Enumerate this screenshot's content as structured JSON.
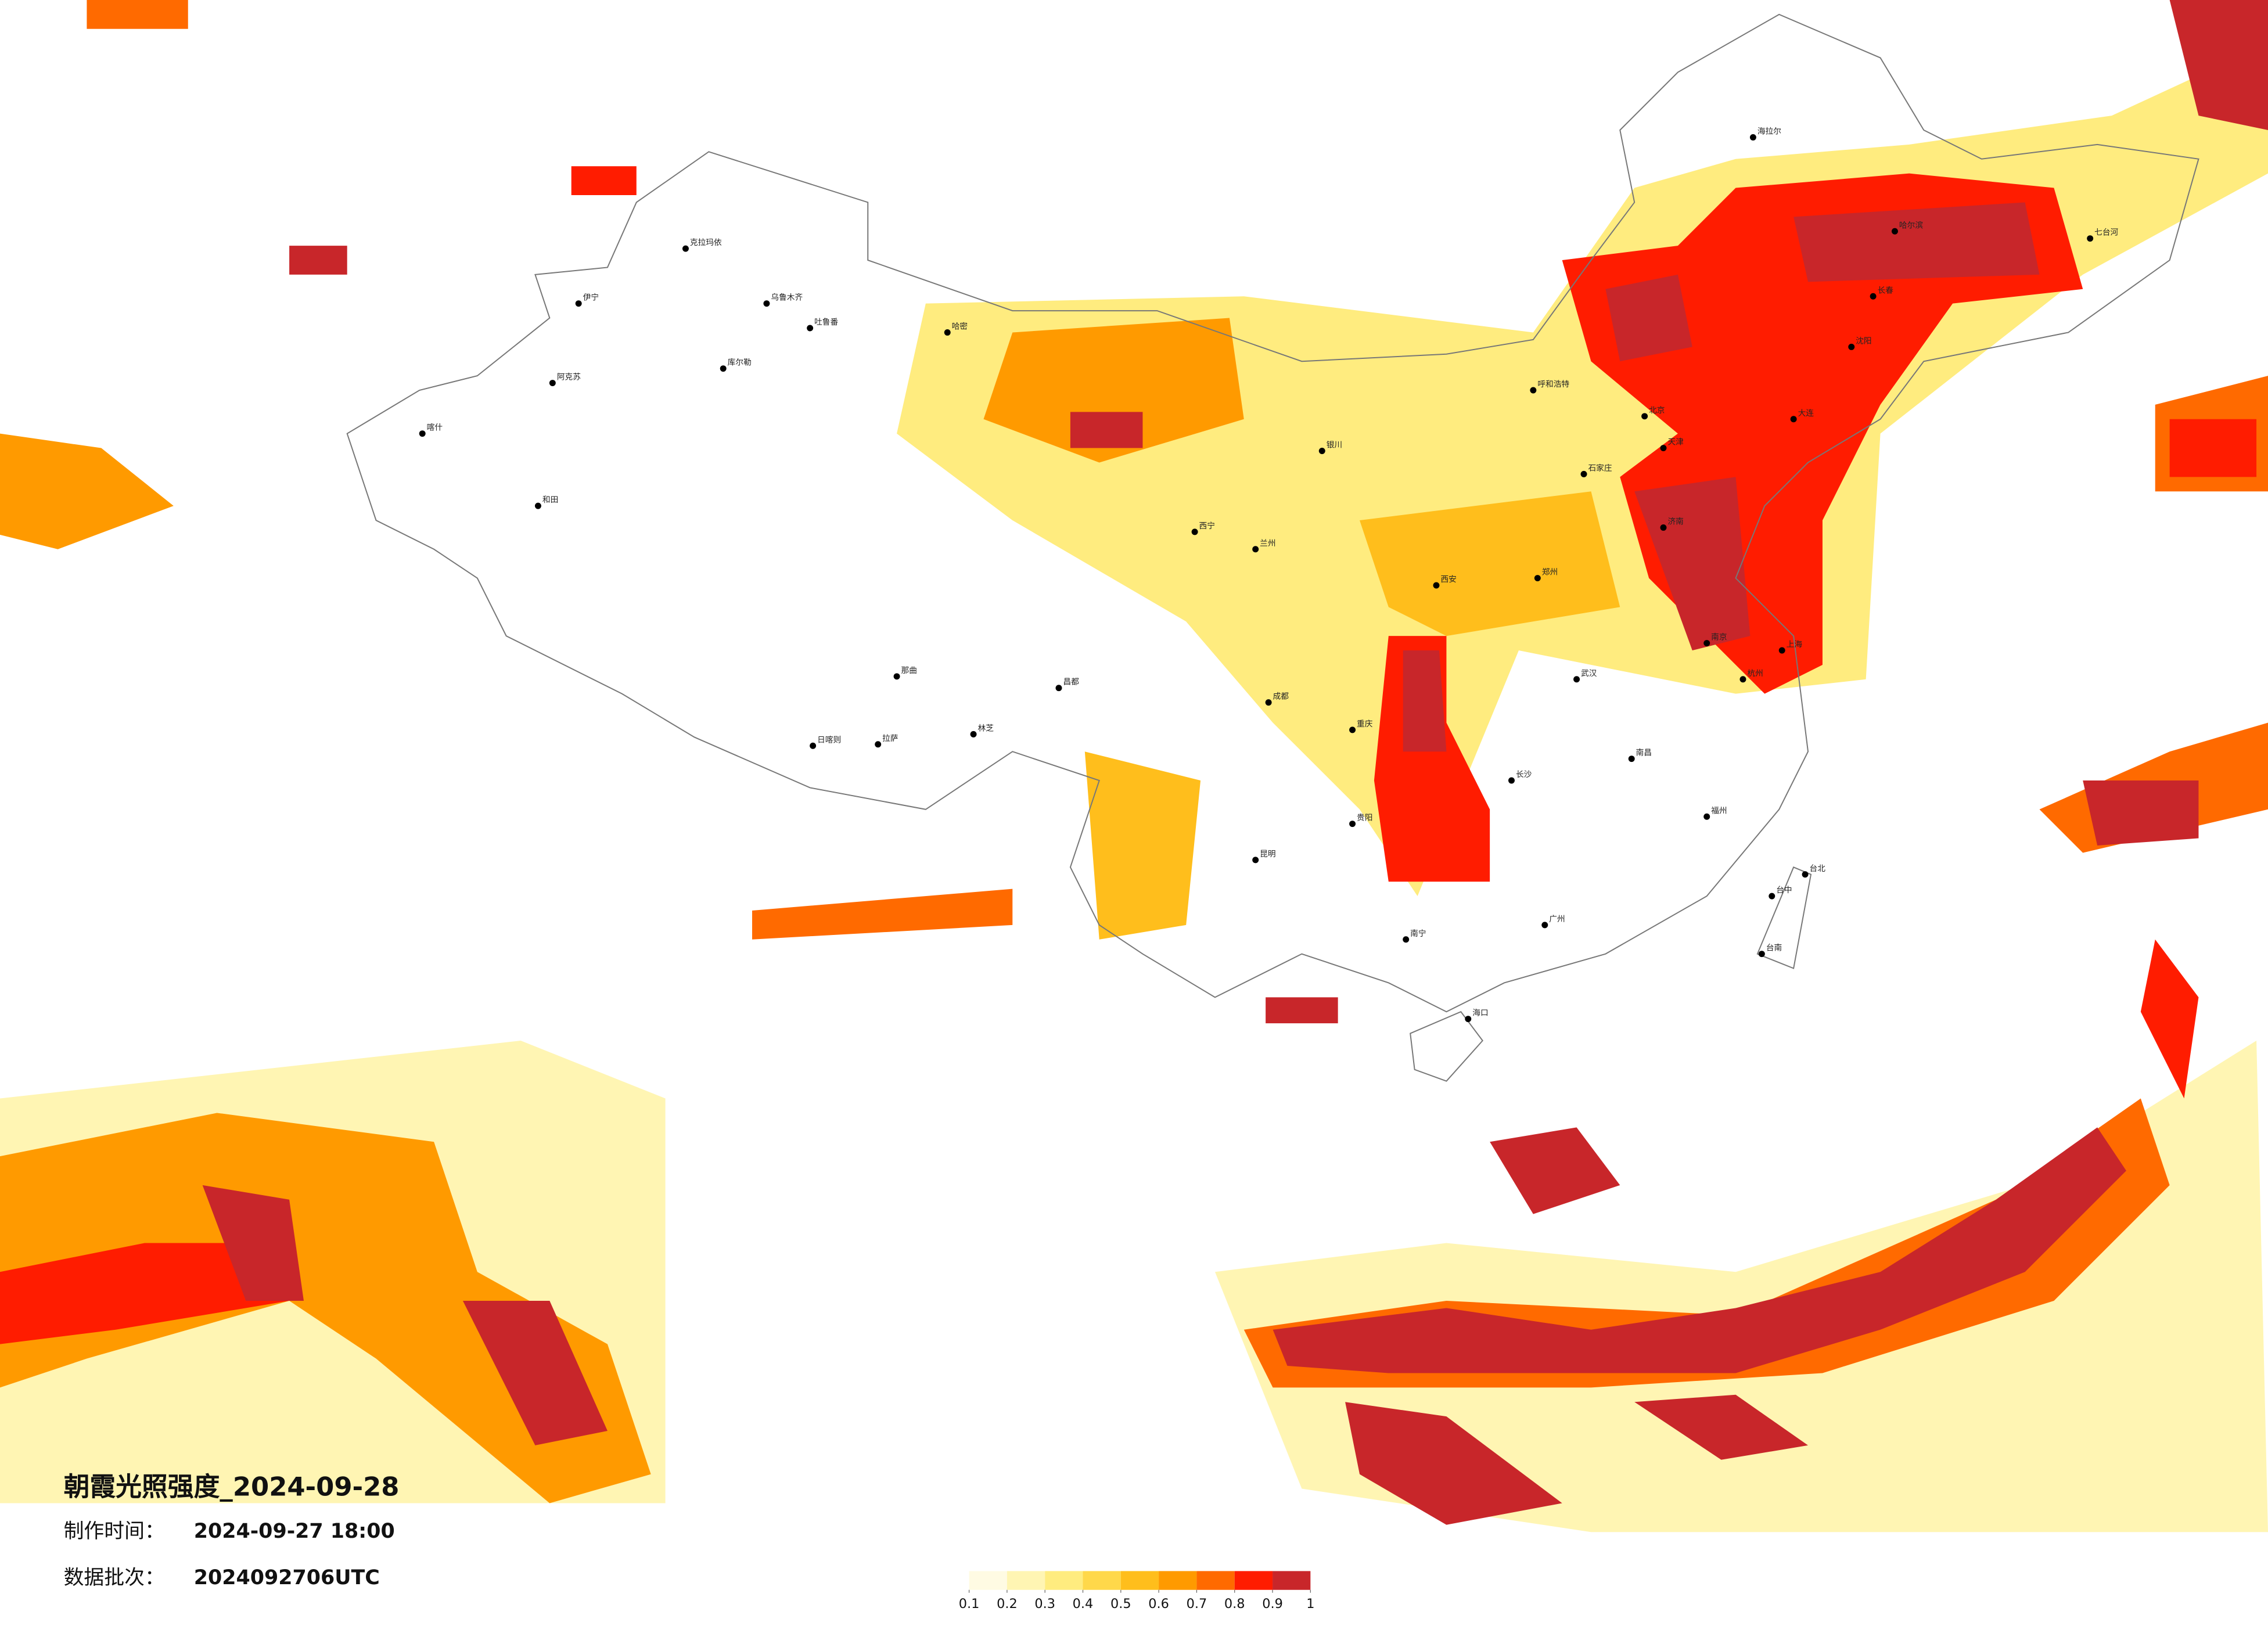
{
  "title": "朝霞光照强度_2024-09-28",
  "meta": {
    "made_label": "制作时间：",
    "made_value": "2024-09-27 18:00",
    "batch_label": "数据批次：",
    "batch_value": "2024092706UTC"
  },
  "legend": {
    "ticks": [
      0.1,
      0.2,
      0.3,
      0.4,
      0.5,
      0.6,
      0.7,
      0.8,
      0.9,
      1
    ],
    "colors": [
      "#fffbe3",
      "#fff5b3",
      "#ffec7f",
      "#ffd84a",
      "#ffbe1c",
      "#ff9a00",
      "#ff6a00",
      "#ff1c00",
      "#c8262a"
    ]
  },
  "cities": [
    "克拉玛依",
    "乌鲁木齐",
    "伊宁",
    "库尔勒",
    "阿克苏",
    "喀什",
    "和田",
    "哈密",
    "吐鲁番",
    "拉萨",
    "日喀则",
    "林芝",
    "那曲",
    "昌都",
    "西宁",
    "兰州",
    "银川",
    "呼和浩特",
    "北京",
    "天津",
    "石家庄",
    "济南",
    "郑州",
    "西安",
    "成都",
    "重庆",
    "贵阳",
    "昆明",
    "南宁",
    "广州",
    "长沙",
    "武汉",
    "南昌",
    "杭州",
    "上海",
    "南京",
    "福州",
    "台北",
    "海口",
    "哈尔滨",
    "长春",
    "沈阳",
    "海拉尔",
    "大连",
    "七台河",
    "台中",
    "台南"
  ]
}
